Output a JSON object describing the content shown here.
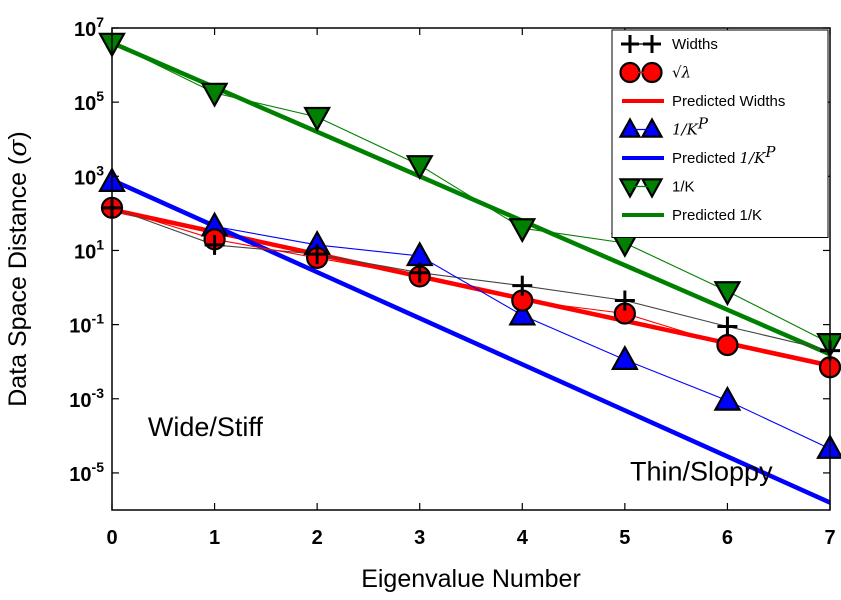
{
  "chart_data": {
    "type": "line",
    "xlabel": "Eigenvalue Number",
    "ylabel_main": "Data Space Distance (",
    "ylabel_sym": "σ",
    "ylabel_close": ")",
    "xlim": [
      0,
      7
    ],
    "ylim_log10": [
      -6,
      7
    ],
    "yscale": "log",
    "grid": false,
    "legend_position": "top-right",
    "x_ticks": [
      "0",
      "1",
      "2",
      "3",
      "4",
      "5",
      "6",
      "7"
    ],
    "y_ticks": [
      {
        "base": "10",
        "exp": "7",
        "value": 7
      },
      {
        "base": "10",
        "exp": "5",
        "value": 5
      },
      {
        "base": "10",
        "exp": "3",
        "value": 3
      },
      {
        "base": "10",
        "exp": "1",
        "value": 1
      },
      {
        "base": "10",
        "exp": "-1",
        "value": -1
      },
      {
        "base": "10",
        "exp": "-3",
        "value": -3
      },
      {
        "base": "10",
        "exp": "-5",
        "value": -5
      }
    ],
    "annotations": [
      {
        "text": "Wide/Stiff",
        "x": 0.35,
        "y_log10": -4.0
      },
      {
        "text": "Thin/Sloppy",
        "x": 5.05,
        "y_log10": -5.2
      }
    ],
    "series": [
      {
        "name": "Widths",
        "kind": "marker",
        "marker": "plus",
        "color": "#000000",
        "x": [
          0,
          1,
          2,
          3,
          4,
          5,
          6,
          7
        ],
        "y_log10": [
          2.15,
          1.15,
          0.9,
          0.4,
          0.05,
          -0.35,
          -1.05,
          -1.7
        ]
      },
      {
        "name_math": "√λ",
        "kind": "marker",
        "marker": "circle",
        "color": "#ff0000",
        "x": [
          0,
          1,
          2,
          3,
          4,
          5,
          6,
          7
        ],
        "y_log10": [
          2.15,
          1.3,
          0.8,
          0.3,
          -0.35,
          -0.7,
          -1.55,
          -2.15
        ]
      },
      {
        "name": "Predicted Widths",
        "kind": "fit",
        "color": "#ff0000",
        "x": [
          0,
          7
        ],
        "y_log10": [
          2.1,
          -2.1
        ]
      },
      {
        "name_math": "1/K",
        "name_sup": "P",
        "kind": "marker",
        "marker": "triangle-up",
        "color": "#0000ff",
        "x": [
          0,
          1,
          2,
          3,
          4,
          5,
          6,
          7
        ],
        "y_log10": [
          2.85,
          1.65,
          1.15,
          0.85,
          -0.75,
          -1.95,
          -3.05,
          -4.35
        ]
      },
      {
        "name_prefix": "Predicted ",
        "name_math": "1/K",
        "name_sup": "P",
        "kind": "fit",
        "color": "#0000ff",
        "x": [
          0,
          7
        ],
        "y_log10": [
          2.9,
          -5.8
        ]
      },
      {
        "name": "1/K",
        "kind": "marker",
        "marker": "triangle-down",
        "color": "#008000",
        "x": [
          0,
          1,
          2,
          3,
          4,
          5,
          6,
          7
        ],
        "y_log10": [
          6.6,
          5.25,
          4.6,
          3.3,
          1.6,
          1.2,
          -0.1,
          -1.5
        ]
      },
      {
        "name": "Predicted 1/K",
        "kind": "fit",
        "color": "#008000",
        "x": [
          0,
          7
        ],
        "y_log10": [
          6.6,
          -1.8
        ]
      }
    ]
  }
}
